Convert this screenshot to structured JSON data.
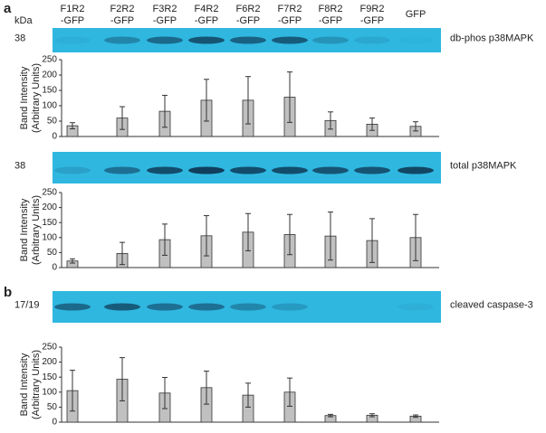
{
  "panels": [
    "a",
    "b"
  ],
  "kda": "kDa",
  "lanes": [
    [
      "F1R2",
      "-GFP"
    ],
    [
      "F2R2",
      "-GFP"
    ],
    [
      "F3R2",
      "-GFP"
    ],
    [
      "F4R2",
      "-GFP"
    ],
    [
      "F6R2",
      "-GFP"
    ],
    [
      "F7R2",
      "-GFP"
    ],
    [
      "F8R2",
      "-GFP"
    ],
    [
      "F9R2",
      "-GFP"
    ],
    [
      "GFP"
    ]
  ],
  "blots": [
    {
      "size": "38",
      "label": "db-phos p38MAPK"
    },
    {
      "size": "38",
      "label": "total p38MAPK"
    },
    {
      "size": "17/19",
      "label": "cleaved caspase-3"
    }
  ],
  "chart_data": [
    {
      "type": "bar",
      "y_label": [
        "Band Intensity",
        "(Arbitrary Units)"
      ],
      "categories": [
        null,
        null,
        null,
        null,
        null,
        null,
        null,
        null,
        null
      ],
      "values": [
        35,
        60,
        82,
        118,
        118,
        128,
        52,
        40,
        33
      ],
      "errors": [
        10,
        37,
        52,
        68,
        77,
        82,
        28,
        20,
        15
      ],
      "color": "#c0c0c0",
      "ylim": [
        0,
        250
      ],
      "yticks": [
        0,
        50,
        100,
        150,
        200,
        250
      ]
    },
    {
      "type": "bar",
      "y_label": [
        "Band Intensity",
        "(Arbitrary Units)"
      ],
      "categories": [
        null,
        null,
        null,
        null,
        null,
        null,
        null,
        null,
        null
      ],
      "values": [
        22,
        47,
        93,
        106,
        118,
        110,
        105,
        90,
        100
      ],
      "errors": [
        7,
        37,
        52,
        67,
        62,
        67,
        80,
        73,
        77
      ],
      "color": "#c0c0c0",
      "ylim": [
        0,
        250
      ],
      "yticks": [
        0,
        50,
        100,
        150,
        200,
        250
      ]
    },
    {
      "type": "bar",
      "y_label": [
        "Band Intensity",
        "(Arbitrary Units)"
      ],
      "categories": [
        null,
        null,
        null,
        null,
        null,
        null,
        null,
        null,
        null
      ],
      "values": [
        105,
        143,
        97,
        115,
        90,
        100,
        22,
        23,
        20
      ],
      "errors": [
        68,
        72,
        52,
        55,
        40,
        47,
        4,
        5,
        4
      ],
      "color": "#c0c0c0",
      "ylim": [
        0,
        250
      ],
      "yticks": [
        0,
        50,
        100,
        150,
        200,
        250
      ]
    }
  ]
}
